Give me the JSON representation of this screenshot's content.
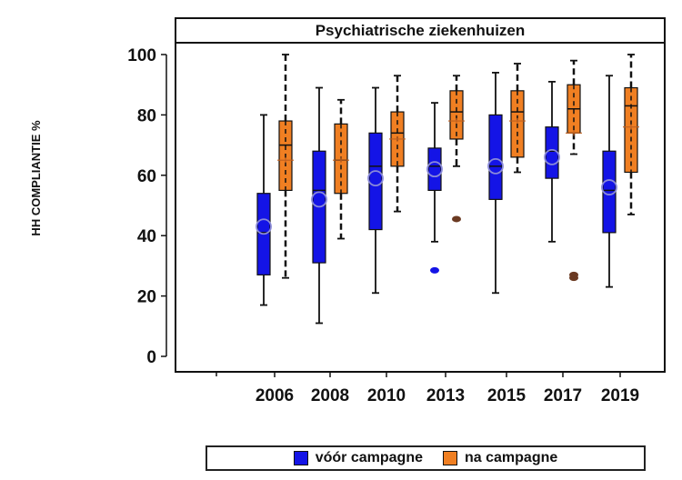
{
  "chart_data": {
    "type": "box",
    "title": "Psychiatrische ziekenhuizen",
    "ylabel": "HH COMPLIANTIE %",
    "xlabel": "",
    "ylim": [
      0,
      100
    ],
    "yticks": [
      0,
      20,
      40,
      60,
      80,
      100
    ],
    "categories": [
      "2006",
      "2008",
      "2010",
      "2013",
      "2015",
      "2017",
      "2019"
    ],
    "legend_position": "bottom",
    "series": [
      {
        "name": "vóór campagne",
        "color": "#1414e6",
        "boxes": [
          {
            "min": 17,
            "q1": 27,
            "median": 41,
            "q3": 54,
            "max": 80,
            "mean": 43,
            "outliers": []
          },
          {
            "min": 11,
            "q1": 31,
            "median": 55,
            "q3": 68,
            "max": 89,
            "mean": 52,
            "outliers": []
          },
          {
            "min": 21,
            "q1": 42,
            "median": 63,
            "q3": 74,
            "max": 89,
            "mean": 59,
            "outliers": []
          },
          {
            "min": 38,
            "q1": 55,
            "median": 63,
            "q3": 69,
            "max": 84,
            "mean": 62,
            "outliers": [
              28.5
            ]
          },
          {
            "min": 21,
            "q1": 52,
            "median": 63,
            "q3": 80,
            "max": 94,
            "mean": 63,
            "outliers": []
          },
          {
            "min": 38,
            "q1": 59,
            "median": 68,
            "q3": 76,
            "max": 91,
            "mean": 66,
            "outliers": []
          },
          {
            "min": 23,
            "q1": 41,
            "median": 55,
            "q3": 68,
            "max": 93,
            "mean": 56,
            "outliers": []
          }
        ]
      },
      {
        "name": "na campagne",
        "color": "#f07f22",
        "boxes": [
          {
            "min": 26,
            "q1": 55,
            "median": 70,
            "q3": 78,
            "max": 100,
            "mean": 65,
            "outliers": []
          },
          {
            "min": 39,
            "q1": 54,
            "median": 65,
            "q3": 77,
            "max": 85,
            "mean": 65,
            "outliers": []
          },
          {
            "min": 48,
            "q1": 63,
            "median": 74,
            "q3": 81,
            "max": 93,
            "mean": 72,
            "outliers": []
          },
          {
            "min": 63,
            "q1": 72,
            "median": 81,
            "q3": 88,
            "max": 93,
            "mean": 78,
            "outliers": [
              45.5
            ]
          },
          {
            "min": 61,
            "q1": 66,
            "median": 81,
            "q3": 88,
            "max": 97,
            "mean": 78,
            "outliers": []
          },
          {
            "min": 67,
            "q1": 74,
            "median": 82,
            "q3": 90,
            "max": 98,
            "mean": 74,
            "outliers": [
              26,
              27
            ]
          },
          {
            "min": 47,
            "q1": 61,
            "median": 83,
            "q3": 89,
            "max": 100,
            "mean": 76,
            "outliers": []
          }
        ]
      }
    ]
  }
}
